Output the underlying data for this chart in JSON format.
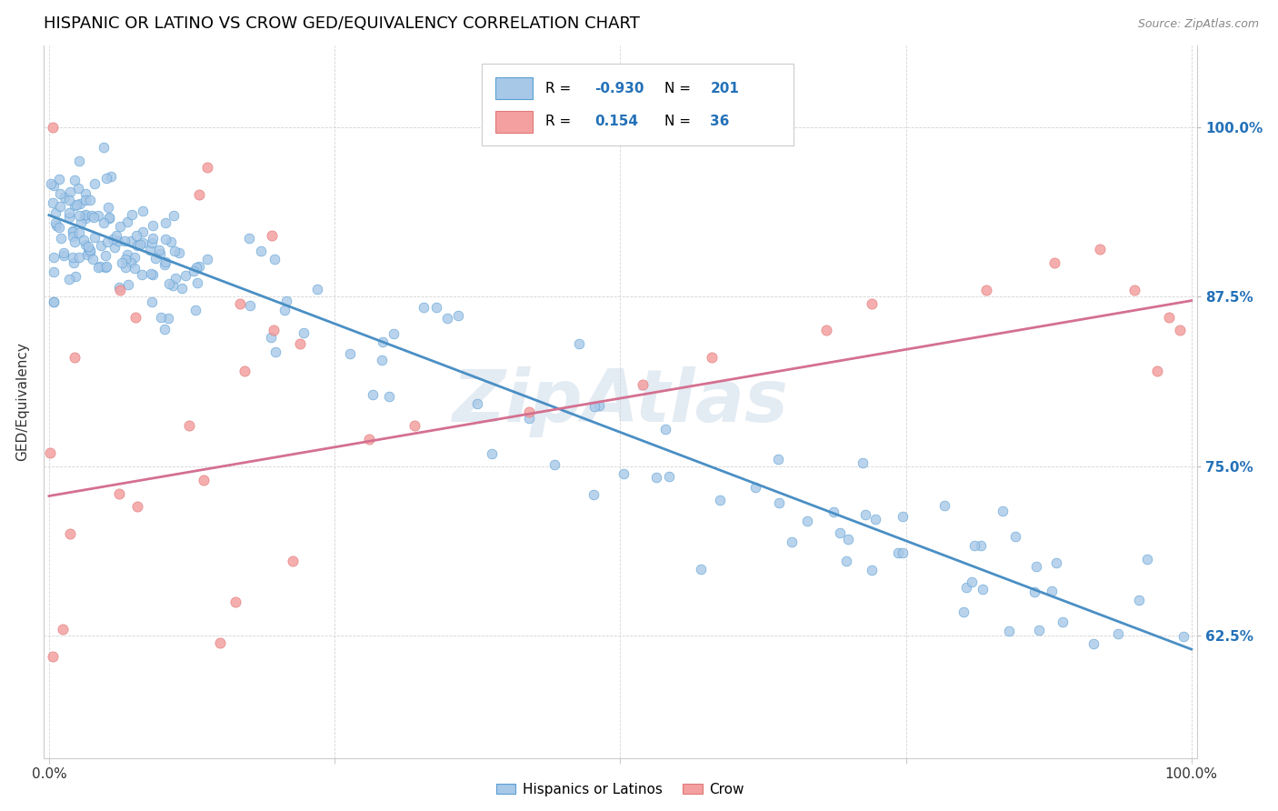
{
  "title": "HISPANIC OR LATINO VS CROW GED/EQUIVALENCY CORRELATION CHART",
  "source": "Source: ZipAtlas.com",
  "ylabel": "GED/Equivalency",
  "ytick_labels": [
    "62.5%",
    "75.0%",
    "87.5%",
    "100.0%"
  ],
  "ytick_values": [
    0.625,
    0.75,
    0.875,
    1.0
  ],
  "blue_R": "-0.930",
  "blue_N": "201",
  "pink_R": "0.154",
  "pink_N": "36",
  "blue_color": "#a8c8e8",
  "pink_color": "#f4a0a0",
  "blue_edge_color": "#5a9fd4",
  "pink_edge_color": "#e07878",
  "blue_line_color": "#4a8fc4",
  "pink_line_color": "#d47090",
  "watermark": "ZipAtlas",
  "legend_label_blue": "Hispanics or Latinos",
  "legend_label_pink": "Crow",
  "blue_line_x0": 0.0,
  "blue_line_y0": 0.935,
  "blue_line_x1": 1.0,
  "blue_line_y1": 0.615,
  "pink_line_x0": 0.0,
  "pink_line_y0": 0.728,
  "pink_line_x1": 1.0,
  "pink_line_y1": 0.872,
  "ymin": 0.535,
  "ymax": 1.06,
  "xmin": -0.005,
  "xmax": 1.005
}
